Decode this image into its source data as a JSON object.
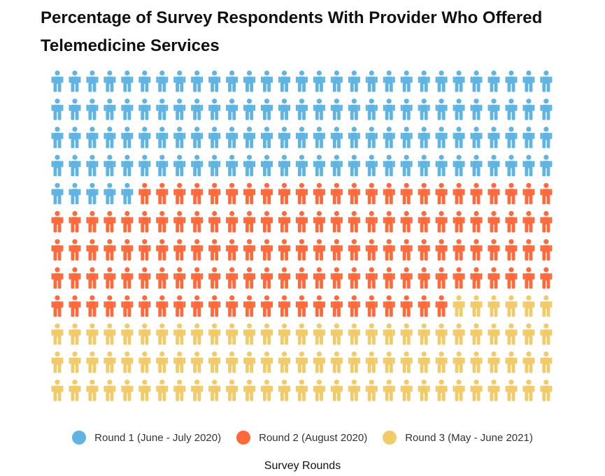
{
  "chart_data": {
    "type": "pictograph",
    "title": "Percentage of Survey Respondents With Provider Who Offered Telemedicine Services",
    "xlabel": "Survey Rounds",
    "icon": "person-icon",
    "columns": 29,
    "rows": 12,
    "fill_order": "row-major, top-left to bottom-right",
    "legend_position": "bottom-center",
    "series": [
      {
        "name": "Round 1 (June - July 2020)",
        "count": 121,
        "color": "#5fb4e2"
      },
      {
        "name": "Round 2 (August 2020)",
        "count": 134,
        "color": "#ff6a3c"
      },
      {
        "name": "Round 3 (May - June 2021)",
        "count": 93,
        "color": "#f1cb6a"
      }
    ]
  }
}
